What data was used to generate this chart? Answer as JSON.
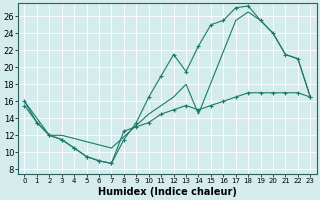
{
  "xlabel": "Humidex (Indice chaleur)",
  "bg_color": "#d4ecec",
  "grid_color": "#b8d8d8",
  "line_color": "#1a7a6a",
  "xlim": [
    -0.5,
    23.5
  ],
  "ylim": [
    7.5,
    27.5
  ],
  "xticks": [
    0,
    1,
    2,
    3,
    4,
    5,
    6,
    7,
    8,
    9,
    10,
    11,
    12,
    13,
    14,
    15,
    16,
    17,
    18,
    19,
    20,
    21,
    22,
    23
  ],
  "yticks": [
    8,
    10,
    12,
    14,
    16,
    18,
    20,
    22,
    24,
    26
  ],
  "line1_x": [
    0,
    1,
    2,
    3,
    4,
    5,
    6,
    7,
    8,
    9,
    10,
    11,
    12,
    13,
    14,
    15,
    16,
    17,
    18,
    19,
    20,
    21,
    22,
    23
  ],
  "line1_y": [
    16,
    13.5,
    12,
    11.5,
    10.5,
    9.5,
    9.0,
    8.7,
    11.5,
    13.5,
    16.5,
    19.0,
    21.5,
    19.5,
    22.5,
    25.0,
    25.5,
    27.0,
    27.2,
    25.5,
    24.0,
    21.5,
    21.0,
    16.5
  ],
  "line2_x": [
    0,
    2,
    3,
    7,
    10,
    12,
    13,
    14,
    17,
    18,
    19,
    20,
    21,
    22,
    23
  ],
  "line2_y": [
    16,
    12,
    12,
    10.5,
    14.5,
    16.5,
    18.0,
    14.5,
    25.5,
    26.5,
    25.5,
    24.0,
    21.5,
    21.0,
    16.5
  ],
  "line3_x": [
    0,
    1,
    2,
    3,
    4,
    5,
    6,
    7,
    8,
    9,
    10,
    11,
    12,
    13,
    14,
    15,
    16,
    17,
    18,
    19,
    20,
    21,
    22,
    23
  ],
  "line3_y": [
    15.5,
    13.5,
    12,
    11.5,
    10.5,
    9.5,
    9.0,
    8.7,
    12.5,
    13.0,
    13.5,
    14.5,
    15.0,
    15.5,
    15.0,
    15.5,
    16.0,
    16.5,
    17.0,
    17.0,
    17.0,
    17.0,
    17.0,
    16.5
  ]
}
